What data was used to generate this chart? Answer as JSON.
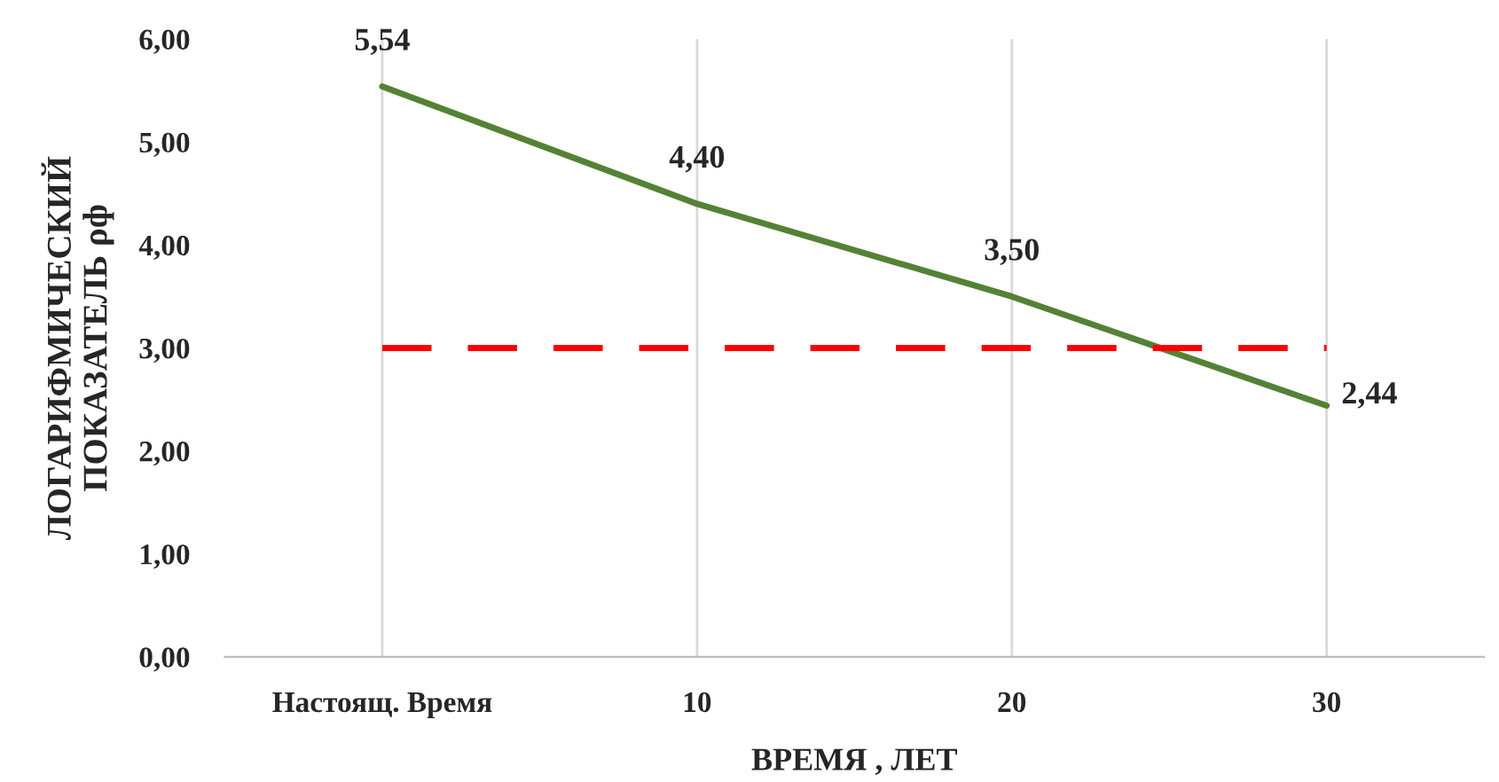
{
  "chart_data": {
    "type": "line",
    "xlabel": "ВРЕМЯ , ЛЕТ",
    "ylabel": "ЛОГАРИФМИЧЕСКИЙ\nПОКАЗАТЕЛЬ ρф",
    "categories": [
      "Настоящ. Время",
      "10",
      "20",
      "30"
    ],
    "series": [
      {
        "color": "#548235",
        "values": [
          5.54,
          4.4,
          3.5,
          2.44
        ],
        "value_labels": [
          "5,54",
          "4,40",
          "3,50",
          "2,44"
        ],
        "line_style": "solid"
      },
      {
        "color": "#ff0000",
        "values": [
          3,
          3,
          3,
          3
        ],
        "line_style": "dashed"
      }
    ],
    "ylim": [
      0,
      6
    ],
    "yticks": [
      {
        "value": 0,
        "label": "0,00"
      },
      {
        "value": 1,
        "label": "1,00"
      },
      {
        "value": 2,
        "label": "2,00"
      },
      {
        "value": 3,
        "label": "3,00"
      },
      {
        "value": 4,
        "label": "4,00"
      },
      {
        "value": 5,
        "label": "5,00"
      },
      {
        "value": 6,
        "label": "6,00"
      }
    ],
    "grid": "x",
    "legend": false,
    "marker": "none"
  }
}
